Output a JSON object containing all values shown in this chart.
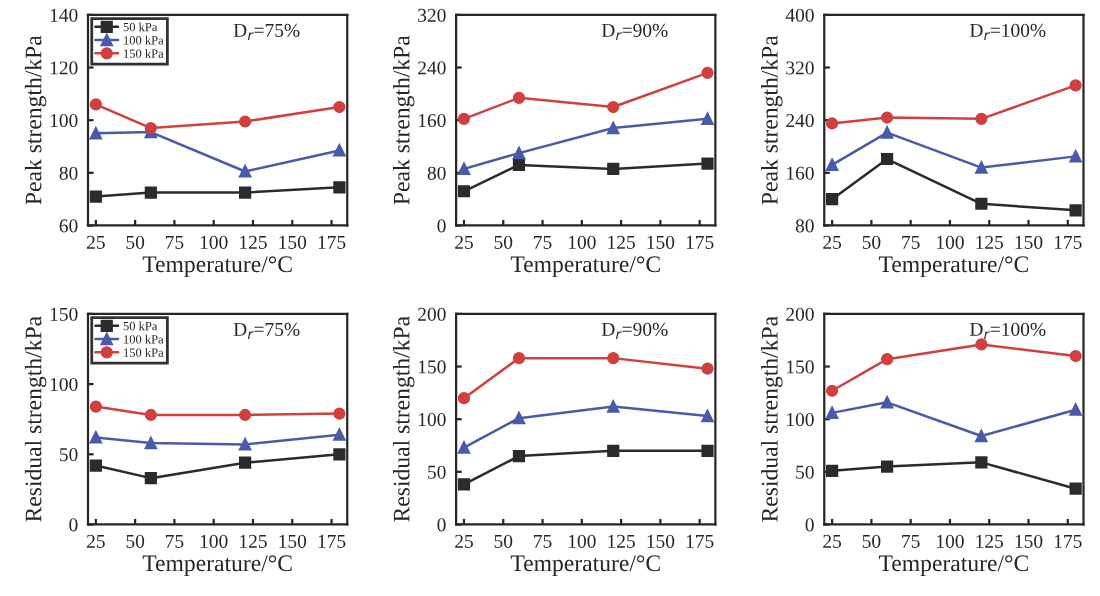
{
  "chart_data": [
    {
      "type": "line",
      "xlabel": "Temperature/°C",
      "ylabel": "Peak strength/kPa",
      "annotations": [
        "D$_{r}$=75%"
      ],
      "x": [
        25,
        60,
        120,
        180
      ],
      "xlim": [
        20,
        185
      ],
      "xticks": [
        25,
        50,
        75,
        100,
        125,
        150,
        175
      ],
      "ylim": [
        60,
        140
      ],
      "yticks": [
        60,
        80,
        100,
        120,
        140
      ],
      "legend": "top left",
      "grid": false,
      "series": [
        {
          "name": "50 kPa",
          "color": "#2b2b2b",
          "marker": "square",
          "values": [
            71,
            72.5,
            72.5,
            74.5
          ]
        },
        {
          "name": "100 kPa",
          "color": "#4a5aa8",
          "marker": "triangle",
          "values": [
            95,
            95.5,
            80.5,
            88.5
          ]
        },
        {
          "name": "150 kPa",
          "color": "#d04040",
          "marker": "circle",
          "values": [
            106,
            97,
            99.5,
            105
          ]
        }
      ]
    },
    {
      "type": "line",
      "xlabel": "Temperature/°C",
      "ylabel": "Peak strength/kPa",
      "annotations": [
        "D$_{r}$=90%"
      ],
      "x": [
        25,
        60,
        120,
        180
      ],
      "xlim": [
        20,
        185
      ],
      "xticks": [
        25,
        50,
        75,
        100,
        125,
        150,
        175
      ],
      "ylim": [
        0,
        320
      ],
      "yticks": [
        0,
        80,
        160,
        240,
        320
      ],
      "grid": false,
      "series": [
        {
          "color": "#2b2b2b",
          "marker": "square",
          "values": [
            52,
            92,
            86,
            94
          ]
        },
        {
          "color": "#4a5aa8",
          "marker": "triangle",
          "values": [
            86,
            110,
            148,
            162
          ]
        },
        {
          "color": "#d04040",
          "marker": "circle",
          "values": [
            162,
            194,
            180,
            232
          ]
        }
      ]
    },
    {
      "type": "line",
      "xlabel": "Temperature/°C",
      "ylabel": "Peak strength/kPa",
      "annotations": [
        "D$_{r}$=100%"
      ],
      "x": [
        25,
        60,
        120,
        180
      ],
      "xlim": [
        20,
        185
      ],
      "xticks": [
        25,
        50,
        75,
        100,
        125,
        150,
        175
      ],
      "ylim": [
        80,
        400
      ],
      "yticks": [
        80,
        160,
        240,
        320,
        400
      ],
      "grid": false,
      "series": [
        {
          "color": "#2b2b2b",
          "marker": "square",
          "values": [
            120,
            181,
            113,
            103
          ]
        },
        {
          "color": "#4a5aa8",
          "marker": "triangle",
          "values": [
            172,
            221,
            168,
            185
          ]
        },
        {
          "color": "#d04040",
          "marker": "circle",
          "values": [
            235,
            244,
            242,
            293
          ]
        }
      ]
    },
    {
      "type": "line",
      "xlabel": "Temperature/°C",
      "ylabel": "Residual strength/kPa",
      "annotations": [
        "D$_{r}$=75%"
      ],
      "x": [
        25,
        60,
        120,
        180
      ],
      "xlim": [
        20,
        185
      ],
      "xticks": [
        25,
        50,
        75,
        100,
        125,
        150,
        175
      ],
      "ylim": [
        0,
        150
      ],
      "yticks": [
        0,
        50,
        100,
        150
      ],
      "legend": "top left",
      "grid": false,
      "series": [
        {
          "name": "50 kPa",
          "color": "#2b2b2b",
          "marker": "square",
          "values": [
            42,
            33,
            44,
            50
          ]
        },
        {
          "name": "100 kPa",
          "color": "#4a5aa8",
          "marker": "triangle",
          "values": [
            62,
            58,
            57,
            64
          ]
        },
        {
          "name": "150 kPa",
          "color": "#d04040",
          "marker": "circle",
          "values": [
            84,
            78,
            78,
            79
          ]
        }
      ]
    },
    {
      "type": "line",
      "xlabel": "Temperature/°C",
      "ylabel": "Residual strength/kPa",
      "annotations": [
        "D$_{r}$=90%"
      ],
      "x": [
        25,
        60,
        120,
        180
      ],
      "xlim": [
        20,
        185
      ],
      "xticks": [
        25,
        50,
        75,
        100,
        125,
        150,
        175
      ],
      "ylim": [
        0,
        200
      ],
      "yticks": [
        0,
        50,
        100,
        150,
        200
      ],
      "grid": false,
      "series": [
        {
          "color": "#2b2b2b",
          "marker": "square",
          "values": [
            38,
            65,
            70,
            70
          ]
        },
        {
          "color": "#4a5aa8",
          "marker": "triangle",
          "values": [
            73,
            101,
            112,
            103
          ]
        },
        {
          "color": "#d04040",
          "marker": "circle",
          "values": [
            120,
            158,
            158,
            148
          ]
        }
      ]
    },
    {
      "type": "line",
      "xlabel": "Temperature/°C",
      "ylabel": "Residual strength/kPa",
      "annotations": [
        "D$_{r}$=100%"
      ],
      "x": [
        25,
        60,
        120,
        180
      ],
      "xlim": [
        20,
        185
      ],
      "xticks": [
        25,
        50,
        75,
        100,
        125,
        150,
        175
      ],
      "ylim": [
        0,
        200
      ],
      "yticks": [
        0,
        50,
        100,
        150,
        200
      ],
      "grid": false,
      "series": [
        {
          "color": "#2b2b2b",
          "marker": "square",
          "values": [
            51,
            55,
            59,
            34
          ]
        },
        {
          "color": "#4a5aa8",
          "marker": "triangle",
          "values": [
            106,
            116,
            84,
            109
          ]
        },
        {
          "color": "#d04040",
          "marker": "circle",
          "values": [
            127,
            157,
            171,
            160
          ]
        }
      ]
    }
  ]
}
